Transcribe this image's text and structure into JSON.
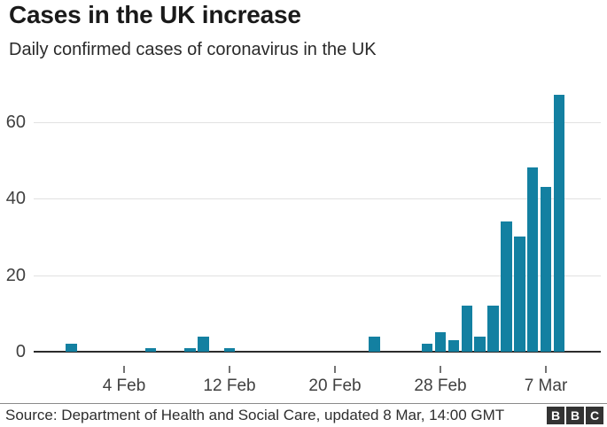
{
  "chart_data": {
    "type": "bar",
    "title": "Cases in the UK increase",
    "subtitle": "Daily confirmed cases of coronavirus in the UK",
    "bar_color": "#1380a1",
    "categories": [
      "31 Jan",
      "1 Feb",
      "2 Feb",
      "3 Feb",
      "4 Feb",
      "5 Feb",
      "6 Feb",
      "7 Feb",
      "8 Feb",
      "9 Feb",
      "10 Feb",
      "11 Feb",
      "12 Feb",
      "13 Feb",
      "14 Feb",
      "15 Feb",
      "16 Feb",
      "17 Feb",
      "18 Feb",
      "19 Feb",
      "20 Feb",
      "21 Feb",
      "22 Feb",
      "23 Feb",
      "24 Feb",
      "25 Feb",
      "26 Feb",
      "27 Feb",
      "28 Feb",
      "29 Feb",
      "1 Mar",
      "2 Mar",
      "3 Mar",
      "4 Mar",
      "5 Mar",
      "6 Mar",
      "7 Mar",
      "8 Mar"
    ],
    "values": [
      2,
      0,
      0,
      0,
      0,
      0,
      1,
      0,
      0,
      1,
      4,
      0,
      1,
      0,
      0,
      0,
      0,
      0,
      0,
      0,
      0,
      0,
      0,
      4,
      0,
      0,
      0,
      2,
      5,
      3,
      12,
      4,
      12,
      34,
      30,
      48,
      43,
      67
    ],
    "xlabel": "",
    "ylabel": "",
    "ylim": [
      0,
      70
    ],
    "y_ticks": [
      0,
      20,
      40,
      60
    ],
    "x_tick_indices": [
      4,
      12,
      20,
      28,
      36
    ],
    "x_tick_labels": [
      "4 Feb",
      "12 Feb",
      "20 Feb",
      "28 Feb",
      "7 Mar"
    ],
    "grid": "horizontal",
    "legend": "none"
  },
  "footer": {
    "source": "Source: Department of Health and Social Care, updated 8 Mar, 14:00 GMT",
    "logo_letters": [
      "B",
      "B",
      "C"
    ]
  }
}
